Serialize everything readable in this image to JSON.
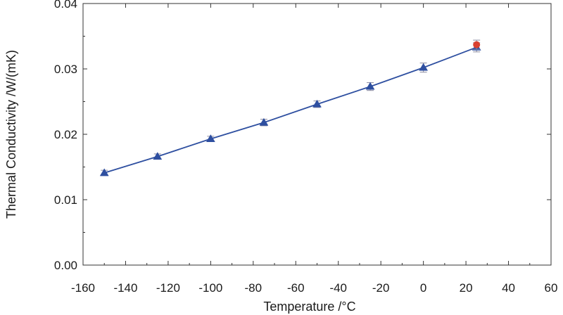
{
  "chart_data": {
    "type": "line",
    "title": "",
    "xlabel": "Temperature /°C",
    "ylabel": "Thermal Conductivity /W/(mK)",
    "xlim": [
      -160,
      60
    ],
    "ylim": [
      0,
      0.04
    ],
    "xticks": [
      -160,
      -140,
      -120,
      -100,
      -80,
      -60,
      -40,
      -20,
      0,
      20,
      40,
      60
    ],
    "yticks": [
      0.0,
      0.01,
      0.02,
      0.03,
      0.04
    ],
    "ytick_labels": [
      "0.00",
      "0.01",
      "0.02",
      "0.03",
      "0.04"
    ],
    "grid": false,
    "legend": "none",
    "series": [
      {
        "marker": "triangle",
        "color": "#2e4fa0",
        "line": true,
        "x": [
          -150,
          -125,
          -100,
          -75,
          -50,
          -25,
          0,
          25
        ],
        "y": [
          0.0141,
          0.0166,
          0.0193,
          0.0218,
          0.0246,
          0.0273,
          0.0302,
          0.0333
        ],
        "error": [
          0.0004,
          0.0004,
          0.0004,
          0.0005,
          0.0005,
          0.0006,
          0.0007,
          0.0007
        ]
      },
      {
        "marker": "circle",
        "color": "#d94030",
        "line": false,
        "x": [
          25
        ],
        "y": [
          0.0337
        ],
        "error": [
          0.0007
        ]
      }
    ]
  }
}
